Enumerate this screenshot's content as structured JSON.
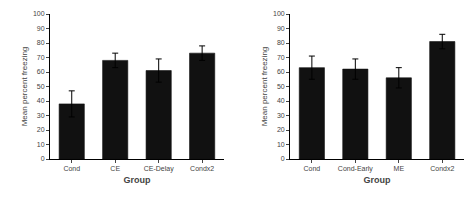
{
  "chart_data": [
    {
      "type": "bar",
      "categories": [
        "Cond",
        "CE",
        "CE-Delay",
        "Condx2"
      ],
      "values": [
        38,
        68,
        61,
        73
      ],
      "errors": [
        9,
        5,
        8,
        5
      ],
      "xlabel": "Group",
      "ylabel": "Mean percent freezing",
      "ylim": [
        0,
        100
      ],
      "yticks": [
        0,
        10,
        20,
        30,
        40,
        50,
        60,
        70,
        80,
        90,
        100
      ],
      "color": "#111111",
      "grid": false
    },
    {
      "type": "bar",
      "categories": [
        "Cond",
        "Cond-Early",
        "ME",
        "Condx2"
      ],
      "values": [
        63,
        62,
        56,
        81
      ],
      "errors": [
        8,
        7,
        7,
        5
      ],
      "xlabel": "Group",
      "ylabel": "Mean percent freezing",
      "ylim": [
        0,
        100
      ],
      "yticks": [
        0,
        10,
        20,
        30,
        40,
        50,
        60,
        70,
        80,
        90,
        100
      ],
      "color": "#111111",
      "grid": false
    }
  ]
}
